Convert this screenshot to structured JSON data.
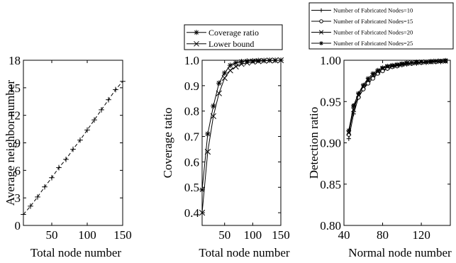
{
  "chart_data": [
    {
      "type": "line",
      "title": "",
      "xlabel": "Total node number",
      "ylabel": "Average neighbor number",
      "xlim": [
        10,
        150
      ],
      "ylim": [
        0,
        18
      ],
      "xticks": [
        50,
        100,
        150
      ],
      "yticks": [
        0,
        3,
        6,
        9,
        12,
        15,
        18
      ],
      "legend": null,
      "series": [
        {
          "marker": "plus",
          "x": [
            10,
            20,
            30,
            40,
            50,
            60,
            70,
            80,
            90,
            100,
            110,
            120,
            130,
            140,
            150
          ],
          "y": [
            1.2,
            2.1,
            3.1,
            4.2,
            5.2,
            6.3,
            7.2,
            8.3,
            9.3,
            10.4,
            11.5,
            12.6,
            13.7,
            14.8,
            15.7
          ]
        }
      ]
    },
    {
      "type": "line",
      "title": "",
      "xlabel": "Total node number",
      "ylabel": "Coverage tatio",
      "xlim": [
        10,
        150
      ],
      "ylim": [
        0.35,
        1.0
      ],
      "xticks": [
        50,
        100,
        150
      ],
      "yticks": [
        0.4,
        0.5,
        0.6,
        0.7,
        0.8,
        0.9,
        1.0
      ],
      "legend": "top",
      "series": [
        {
          "name": "Coverage ratio",
          "marker": "asterisk",
          "x": [
            10,
            20,
            30,
            40,
            50,
            60,
            70,
            80,
            90,
            100,
            110,
            120,
            130,
            140,
            150
          ],
          "y": [
            0.49,
            0.71,
            0.82,
            0.91,
            0.95,
            0.98,
            0.99,
            0.995,
            0.997,
            0.998,
            0.999,
            0.999,
            1.0,
            1.0,
            1.0
          ]
        },
        {
          "name": "Lower bound",
          "marker": "x",
          "x": [
            10,
            20,
            30,
            40,
            50,
            60,
            70,
            80,
            90,
            100,
            110,
            120,
            130,
            140,
            150
          ],
          "y": [
            0.4,
            0.64,
            0.78,
            0.87,
            0.93,
            0.96,
            0.975,
            0.985,
            0.99,
            0.994,
            0.996,
            0.998,
            0.999,
            0.999,
            1.0
          ]
        }
      ]
    },
    {
      "type": "line",
      "title": "",
      "xlabel": "Normal node number",
      "ylabel": "Detection ratio",
      "xlim": [
        40,
        150
      ],
      "ylim": [
        0.8,
        1.0
      ],
      "xticks": [
        40,
        80,
        120
      ],
      "yticks": [
        0.8,
        0.85,
        0.9,
        0.95,
        1.0
      ],
      "legend": "top",
      "series": [
        {
          "name": "Number of Fabricated Nodes=10",
          "marker": "plus",
          "x": [
            45,
            50,
            55,
            60,
            65,
            70,
            75,
            80,
            85,
            90,
            95,
            100,
            105,
            110,
            115,
            120,
            125,
            130,
            135,
            140,
            145
          ],
          "y": [
            0.905,
            0.935,
            0.955,
            0.965,
            0.974,
            0.98,
            0.985,
            0.988,
            0.99,
            0.992,
            0.993,
            0.994,
            0.995,
            0.996,
            0.996,
            0.997,
            0.997,
            0.998,
            0.998,
            0.998,
            0.999
          ]
        },
        {
          "name": "Number of Fabricated Nodes=15",
          "marker": "circle",
          "x": [
            45,
            50,
            55,
            60,
            65,
            70,
            75,
            80,
            85,
            90,
            95,
            100,
            105,
            110,
            115,
            120,
            125,
            130,
            135,
            140,
            145
          ],
          "y": [
            0.91,
            0.945,
            0.955,
            0.965,
            0.972,
            0.978,
            0.984,
            0.987,
            0.99,
            0.992,
            0.993,
            0.995,
            0.996,
            0.996,
            0.997,
            0.997,
            0.998,
            0.998,
            0.998,
            0.999,
            0.999
          ]
        },
        {
          "name": "Number of Fabricated Nodes=20",
          "marker": "x",
          "x": [
            45,
            50,
            55,
            60,
            65,
            70,
            75,
            80,
            85,
            90,
            95,
            100,
            105,
            110,
            115,
            120,
            125,
            130,
            135,
            140,
            145
          ],
          "y": [
            0.912,
            0.94,
            0.958,
            0.968,
            0.976,
            0.982,
            0.986,
            0.99,
            0.992,
            0.993,
            0.994,
            0.995,
            0.996,
            0.997,
            0.997,
            0.998,
            0.998,
            0.998,
            0.999,
            0.999,
            0.999
          ]
        },
        {
          "name": "Number of Fabricated Nodes=25",
          "marker": "asterisk",
          "x": [
            45,
            50,
            55,
            60,
            65,
            70,
            75,
            80,
            85,
            90,
            95,
            100,
            105,
            110,
            115,
            120,
            125,
            130,
            135,
            140,
            145
          ],
          "y": [
            0.915,
            0.945,
            0.96,
            0.97,
            0.978,
            0.984,
            0.988,
            0.991,
            0.993,
            0.994,
            0.995,
            0.996,
            0.997,
            0.997,
            0.998,
            0.998,
            0.998,
            0.999,
            0.999,
            0.999,
            1.0
          ]
        }
      ]
    }
  ]
}
